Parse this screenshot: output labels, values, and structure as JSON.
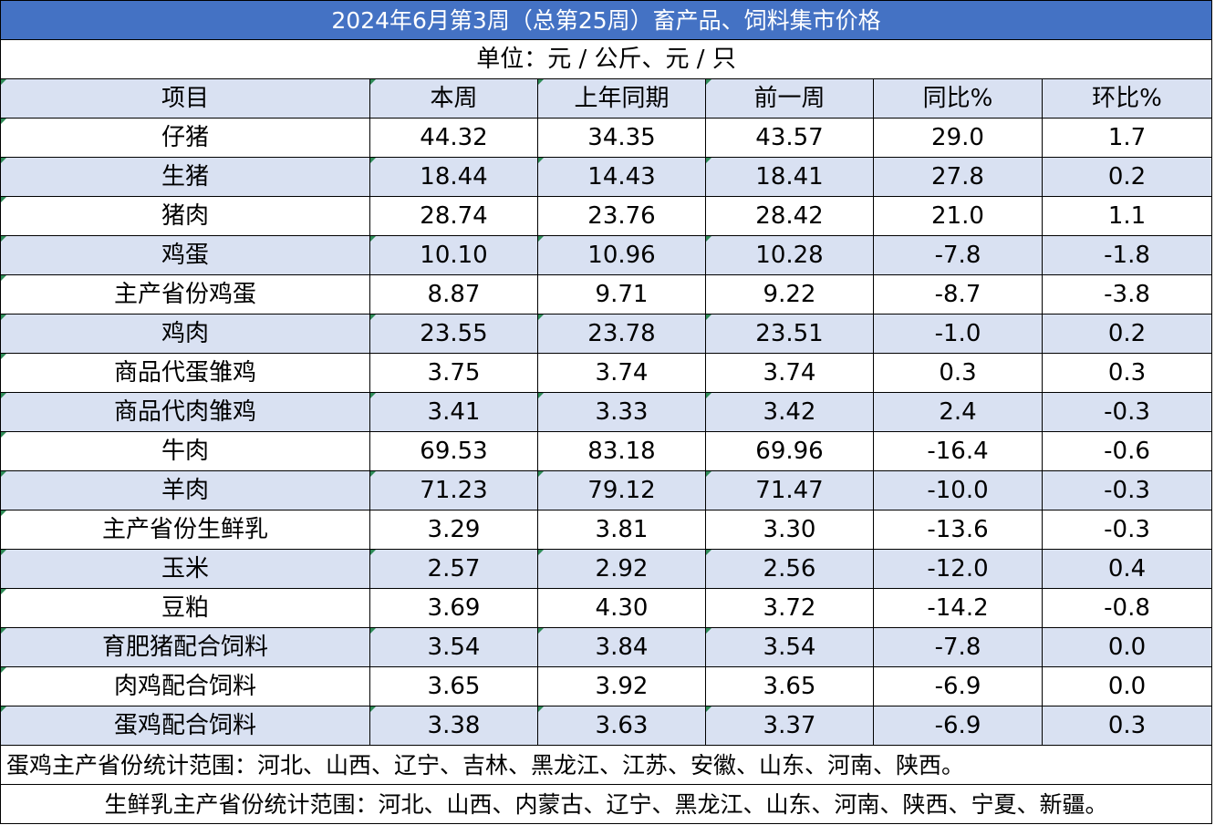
{
  "title": "2024年6月第3周（总第25周）畜产品、饲料集市价格",
  "unit": "单位：元 / 公斤、元 / 只",
  "headers": [
    "项目",
    "本周",
    "上年同期",
    "前一周",
    "同比%",
    "环比%"
  ],
  "rows": [
    {
      "item": "仔猪",
      "this_week": "44.32",
      "last_year": "34.35",
      "prev_week": "43.57",
      "yoy": "29.0",
      "mom": "1.7"
    },
    {
      "item": "生猪",
      "this_week": "18.44",
      "last_year": "14.43",
      "prev_week": "18.41",
      "yoy": "27.8",
      "mom": "0.2"
    },
    {
      "item": "猪肉",
      "this_week": "28.74",
      "last_year": "23.76",
      "prev_week": "28.42",
      "yoy": "21.0",
      "mom": "1.1"
    },
    {
      "item": "鸡蛋",
      "this_week": "10.10",
      "last_year": "10.96",
      "prev_week": "10.28",
      "yoy": "-7.8",
      "mom": "-1.8"
    },
    {
      "item": "主产省份鸡蛋",
      "this_week": "8.87",
      "last_year": "9.71",
      "prev_week": "9.22",
      "yoy": "-8.7",
      "mom": "-3.8"
    },
    {
      "item": "鸡肉",
      "this_week": "23.55",
      "last_year": "23.78",
      "prev_week": "23.51",
      "yoy": "-1.0",
      "mom": "0.2"
    },
    {
      "item": "商品代蛋雏鸡",
      "this_week": "3.75",
      "last_year": "3.74",
      "prev_week": "3.74",
      "yoy": "0.3",
      "mom": "0.3"
    },
    {
      "item": "商品代肉雏鸡",
      "this_week": "3.41",
      "last_year": "3.33",
      "prev_week": "3.42",
      "yoy": "2.4",
      "mom": "-0.3"
    },
    {
      "item": "牛肉",
      "this_week": "69.53",
      "last_year": "83.18",
      "prev_week": "69.96",
      "yoy": "-16.4",
      "mom": "-0.6"
    },
    {
      "item": "羊肉",
      "this_week": "71.23",
      "last_year": "79.12",
      "prev_week": "71.47",
      "yoy": "-10.0",
      "mom": "-0.3"
    },
    {
      "item": "主产省份生鲜乳",
      "this_week": "3.29",
      "last_year": "3.81",
      "prev_week": "3.30",
      "yoy": "-13.6",
      "mom": "-0.3"
    },
    {
      "item": "玉米",
      "this_week": "2.57",
      "last_year": "2.92",
      "prev_week": "2.56",
      "yoy": "-12.0",
      "mom": "0.4"
    },
    {
      "item": "豆粕",
      "this_week": "3.69",
      "last_year": "4.30",
      "prev_week": "3.72",
      "yoy": "-14.2",
      "mom": "-0.8"
    },
    {
      "item": "育肥猪配合饲料",
      "this_week": "3.54",
      "last_year": "3.84",
      "prev_week": "3.54",
      "yoy": "-7.8",
      "mom": "0.0"
    },
    {
      "item": "肉鸡配合饲料",
      "this_week": "3.65",
      "last_year": "3.92",
      "prev_week": "3.65",
      "yoy": "-6.9",
      "mom": "0.0"
    },
    {
      "item": "蛋鸡配合饲料",
      "this_week": "3.38",
      "last_year": "3.63",
      "prev_week": "3.37",
      "yoy": "-6.9",
      "mom": "0.3"
    }
  ],
  "notes": [
    "蛋鸡主产省份统计范围：河北、山西、辽宁、吉林、黑龙江、江苏、安徽、山东、河南、陕西。",
    "生鲜乳主产省份统计范围：河北、山西、内蒙古、辽宁、黑龙江、山东、河南、陕西、宁夏、新疆。"
  ],
  "colors": {
    "title_bg": "#4472c4",
    "title_text": "#ffffff",
    "band_bg": "#d9e1f2",
    "plain_bg": "#ffffff"
  }
}
